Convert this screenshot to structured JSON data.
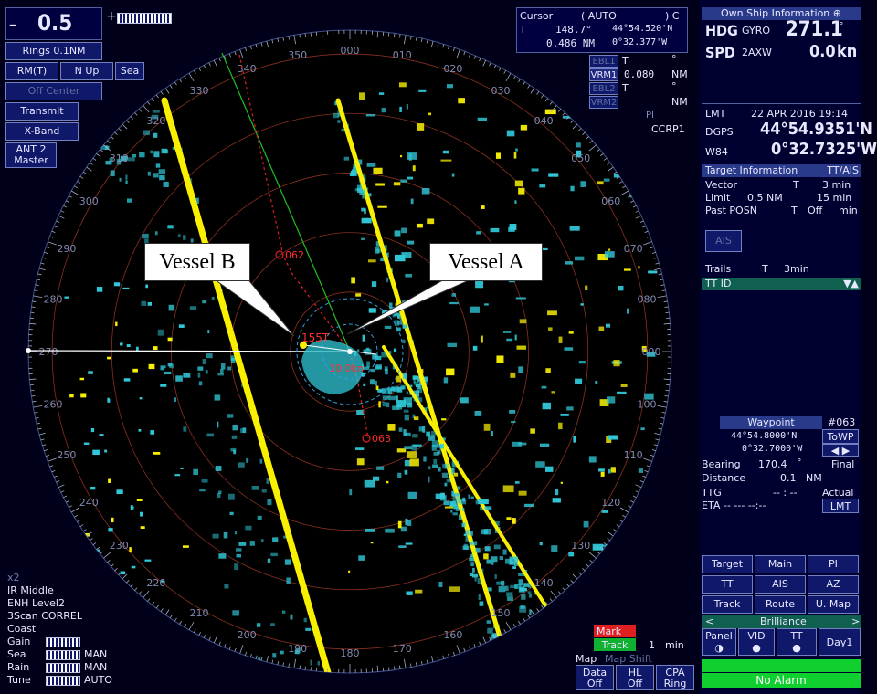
{
  "range": {
    "value": "0.5",
    "minus": "–",
    "plus": "+"
  },
  "left_panel": {
    "rings": "Rings 0.1NM",
    "motion": "RM(T)",
    "orientation": "N Up",
    "sea": "Sea",
    "off_center": "Off Center",
    "transmit": "Transmit",
    "band": "X-Band",
    "antenna": "ANT 2",
    "antenna_role": "Master"
  },
  "cursor_box": {
    "title": "Cursor",
    "mode": "( AUTO",
    "mode_close": ") C",
    "t": "T",
    "bearing": "148.7°",
    "lat": "44°54.520'N",
    "range": "0.486 NM",
    "lon": "0°32.377'W"
  },
  "ebl_vrm": {
    "ebl1": "EBL1",
    "ebl1_t": "T",
    "ebl1_deg": "°",
    "vrm1": "VRM1",
    "vrm1_value": "0.080",
    "vrm1_unit": "NM",
    "ebl2": "EBL2",
    "ebl2_t": "T",
    "ebl2_deg": "°",
    "vrm2": "VRM2",
    "vrm2_unit": "NM",
    "pi": "PI",
    "ccrp": "CCRP1"
  },
  "own_ship": {
    "title": "Own Ship Information",
    "hdg_label": "HDG",
    "hdg_source": "GYRO",
    "hdg_value": "271.1",
    "hdg_unit": "°",
    "spd_label": "SPD",
    "spd_source": "2AXW",
    "spd_value": "0.0",
    "spd_unit": "kn"
  },
  "position": {
    "lmt_label": "LMT",
    "datetime": "22 APR 2016 19:14",
    "dgps_label": "DGPS",
    "lat": "44°54.9351'N",
    "datum_label": "W84",
    "lon": "0°32.7325'W"
  },
  "target_info": {
    "title": "Target Information",
    "mode": "TT/AIS",
    "vector_label": "Vector",
    "vector_t": "T",
    "vector_value": "3 min",
    "limit_label": "Limit",
    "limit_range": "0.5 NM",
    "limit_time": "15 min",
    "past_label": "Past POSN",
    "past_t": "T",
    "past_value": "Off",
    "past_unit": "min",
    "ais": "AIS",
    "trails_label": "Trails",
    "trails_t": "T",
    "trails_value": "3min",
    "tt_id": "TT ID"
  },
  "waypoint": {
    "title": "Waypoint",
    "id": "#063",
    "lat": "44°54.8000'N",
    "towp": "ToWP",
    "lon": "0°32.7000'W",
    "bearing_label": "Bearing",
    "bearing_value": "170.4",
    "bearing_unit": "°",
    "final": "Final",
    "distance_label": "Distance",
    "distance_value": "0.1",
    "distance_unit": "NM",
    "ttg_label": "TTG",
    "ttg_value": "-- : --",
    "actual": "Actual",
    "eta_label": "ETA",
    "eta_value": "-- --- --:--",
    "lmt": "LMT"
  },
  "menu_buttons": {
    "target": "Target",
    "main": "Main",
    "pi": "PI",
    "tt": "TT",
    "ais": "AIS",
    "az": "AZ",
    "track": "Track",
    "route": "Route",
    "umap": "U. Map"
  },
  "brilliance": {
    "left": "<",
    "title": "Brilliance",
    "right": ">",
    "panel": "Panel",
    "vid": "VID",
    "tt": "TT",
    "mode": "Day1"
  },
  "alarm": "No Alarm",
  "bottom_left": {
    "x2": "x2",
    "ir": "IR Middle",
    "enh": "ENH Level2",
    "scan": "3Scan CORREL",
    "coast": "Coast",
    "gain": "Gain",
    "sea": "Sea",
    "sea_mode": "MAN",
    "rain": "Rain",
    "rain_mode": "MAN",
    "tune": "Tune",
    "tune_mode": "AUTO"
  },
  "bottom_right": {
    "mark": "Mark",
    "track": "Track",
    "track_value": "1",
    "track_unit": "min",
    "map": "Map",
    "map_shift": "Map Shift",
    "data": "Data",
    "data_state": "Off",
    "hl": "HL",
    "hl_state": "Off",
    "cpa": "CPA",
    "cpa_state": "Ring"
  },
  "radar": {
    "bearing_labels": [
      "000",
      "010",
      "020",
      "030",
      "040",
      "050",
      "060",
      "070",
      "080",
      "090",
      "100",
      "110",
      "120",
      "130",
      "140",
      "150",
      "160",
      "170",
      "180",
      "190",
      "200",
      "210",
      "220",
      "230",
      "240",
      "250",
      "260",
      "270",
      "280",
      "290",
      "300",
      "310",
      "320",
      "330",
      "340",
      "350"
    ],
    "waypoints": [
      "062",
      "063"
    ],
    "target_label": "155T",
    "speed_label": "10.0kn"
  },
  "callouts": {
    "vessel_b": "Vessel B",
    "vessel_a": "Vessel A"
  },
  "colors": {
    "echo_yellow": "#f8f000",
    "echo_cyan": "#30c8d8",
    "alarm_green": "#10d030",
    "mark_red": "#e02020",
    "track_green": "#10b030"
  }
}
